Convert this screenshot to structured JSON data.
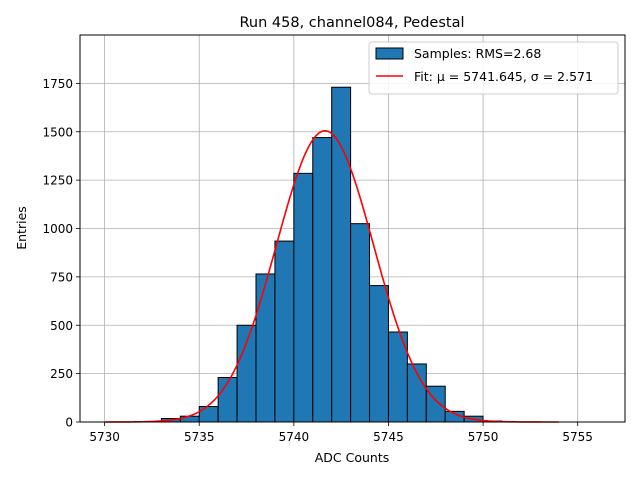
{
  "chart_data": {
    "type": "bar",
    "title": "Run 458, channel084, Pedestal",
    "xlabel": "ADC Counts",
    "ylabel": "Entries",
    "xlim": [
      5728.7,
      5757.5
    ],
    "ylim": [
      0,
      2000
    ],
    "xticks": [
      5730,
      5735,
      5740,
      5745,
      5750,
      5755
    ],
    "yticks": [
      0,
      250,
      500,
      750,
      1000,
      1250,
      1500,
      1750
    ],
    "grid": true,
    "legend_position": "top-right",
    "bar_color": "#1f77b4",
    "fit_color": "#ff0000",
    "bins": {
      "edges": [
        5733.0,
        5734.0,
        5735.0,
        5736.0,
        5737.0,
        5738.0,
        5739.0,
        5740.0,
        5741.0,
        5742.0,
        5743.0,
        5744.0,
        5745.0,
        5746.0,
        5747.0,
        5748.0,
        5749.0,
        5750.0,
        5751.0
      ],
      "values": [
        18,
        30,
        80,
        230,
        500,
        765,
        935,
        1285,
        1470,
        1730,
        1025,
        705,
        465,
        300,
        185,
        55,
        30,
        5
      ]
    },
    "series": [
      {
        "name": "Samples: RMS=2.68",
        "kind": "histogram"
      },
      {
        "name": "Fit: μ = 5741.645, σ = 2.571",
        "kind": "gaussian_fit",
        "mu": 5741.645,
        "sigma": 2.571,
        "amplitude": 1505,
        "x_range": [
          5730,
          5754
        ]
      }
    ]
  }
}
